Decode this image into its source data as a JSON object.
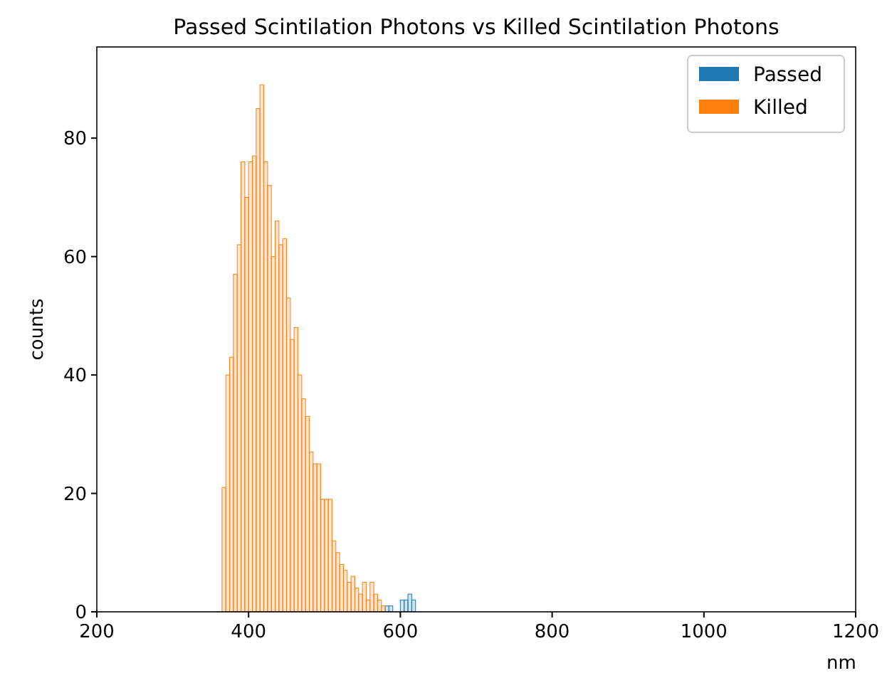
{
  "chart_data": {
    "type": "histogram",
    "title": "Passed Scintilation Photons vs Killed Scintilation Photons",
    "xlabel": "nm",
    "ylabel": "counts",
    "bins": [
      360,
      365,
      370,
      375,
      380,
      385,
      390,
      395,
      400,
      405,
      410,
      415,
      420,
      425,
      430,
      435,
      440,
      445,
      450,
      455,
      460,
      465,
      470,
      475,
      480,
      485,
      490,
      495,
      500,
      505,
      510,
      515,
      520,
      525,
      530,
      535,
      540,
      545,
      550,
      555,
      560,
      565,
      570,
      575,
      580,
      585,
      590,
      595,
      600,
      605,
      610,
      615,
      620,
      625,
      630
    ],
    "series": [
      {
        "name": "Passed",
        "color": "#1f77b4",
        "values": [
          0,
          0,
          0,
          0,
          0,
          0,
          0,
          0,
          0,
          0,
          0,
          0,
          0,
          0,
          0,
          0,
          0,
          0,
          0,
          0,
          0,
          0,
          0,
          0,
          0,
          0,
          0,
          0,
          0,
          0,
          0,
          0,
          0,
          0,
          0,
          0,
          0,
          0,
          0,
          0,
          0,
          0,
          0,
          0,
          1,
          1,
          0,
          0,
          2,
          2,
          3,
          2,
          0,
          0
        ]
      },
      {
        "name": "Killed",
        "color": "#ff7f0e",
        "values": [
          0,
          21,
          40,
          43,
          57,
          62,
          76,
          70,
          76,
          77,
          85,
          89,
          76,
          72,
          60,
          66,
          62,
          63,
          53,
          46,
          48,
          40,
          36,
          33,
          27,
          25,
          25,
          19,
          19,
          19,
          12,
          10,
          8,
          7,
          5,
          6,
          4,
          3,
          5,
          2,
          5,
          3,
          2,
          1,
          0,
          0,
          0,
          0,
          0,
          0,
          0,
          0,
          0,
          0
        ]
      }
    ],
    "xlim": [
      200,
      1200
    ],
    "xticks": [
      200,
      400,
      600,
      800,
      1000,
      1200
    ],
    "ylim": [
      0,
      95.4
    ],
    "yticks": [
      0,
      20,
      40,
      60,
      80
    ],
    "legend": "top right"
  }
}
